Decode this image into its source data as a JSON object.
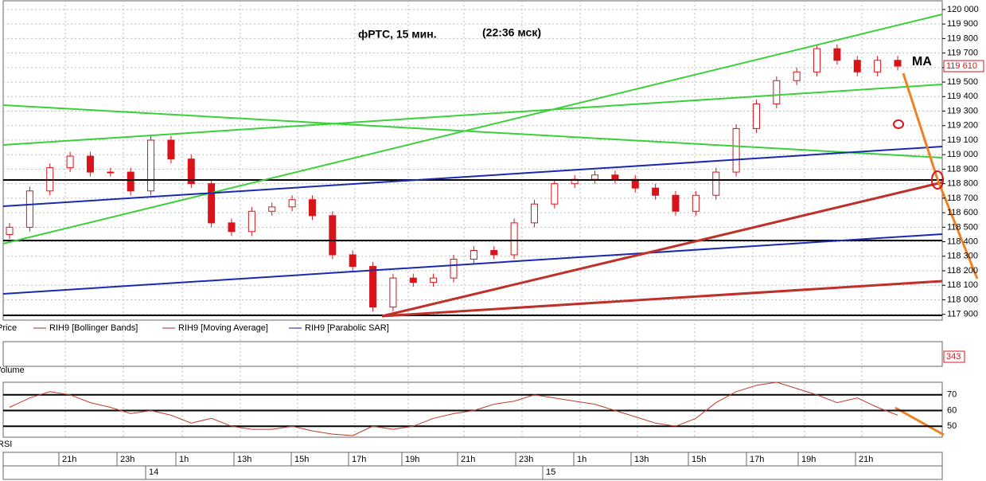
{
  "chart_data": {
    "type": "candlestick",
    "title": "фРТС,  15 мин.",
    "subtitle": "(22:36 мск)",
    "annotation": "MA",
    "price_label": "Price",
    "overlays": [
      {
        "name": "RIH9 [Bollinger Bands]",
        "color": "#a0302a"
      },
      {
        "name": "RIH9 [Moving Average]",
        "color": "#a0302a"
      },
      {
        "name": "RIH9 [Parabolic SAR]",
        "color": "#1a1aa0"
      }
    ],
    "up_color": "#ffffff",
    "down_color": "#d8141a",
    "open": [
      118450,
      118500,
      118750,
      118910,
      118990,
      118880,
      118880,
      118750,
      119100,
      118970,
      118800,
      118530,
      118470,
      118610,
      118640,
      118690,
      118580,
      118310,
      118230,
      117950,
      118150,
      118120,
      118150,
      118280,
      118340,
      118310,
      118530,
      118660,
      118800,
      118830,
      118860,
      118830,
      118770,
      118720,
      118610,
      118720,
      118880,
      119180,
      119350,
      119510,
      119570,
      119730,
      119650,
      119570,
      119650
    ],
    "high": [
      118530,
      118780,
      118940,
      119020,
      119020,
      118910,
      118910,
      119130,
      119130,
      119000,
      118830,
      118560,
      118640,
      118670,
      118720,
      118720,
      118610,
      118340,
      118260,
      118180,
      118180,
      118180,
      118310,
      118370,
      118370,
      118560,
      118690,
      118830,
      118860,
      118890,
      118890,
      118860,
      118800,
      118750,
      118750,
      118910,
      119210,
      119380,
      119540,
      119600,
      119760,
      119760,
      119680,
      119680,
      119680
    ],
    "low": [
      118420,
      118470,
      118720,
      118880,
      118850,
      118850,
      118720,
      118720,
      118940,
      118770,
      118500,
      118440,
      118440,
      118580,
      118610,
      118550,
      118280,
      118200,
      117920,
      117920,
      118090,
      118090,
      118120,
      118250,
      118280,
      118280,
      118500,
      118630,
      118770,
      118800,
      118800,
      118740,
      118690,
      118580,
      118580,
      118690,
      118850,
      119150,
      119320,
      119480,
      119540,
      119620,
      119540,
      119540,
      119580
    ],
    "close": [
      118500,
      118750,
      118910,
      118990,
      118880,
      118880,
      118750,
      119100,
      118970,
      118800,
      118530,
      118470,
      118610,
      118640,
      118690,
      118580,
      118310,
      118230,
      117950,
      118150,
      118120,
      118150,
      118280,
      118340,
      118310,
      118530,
      118660,
      118800,
      118830,
      118860,
      118830,
      118770,
      118720,
      118610,
      118720,
      118880,
      119180,
      119350,
      119510,
      119570,
      119730,
      119650,
      119570,
      119650,
      119610
    ],
    "ylim": [
      117860,
      120060
    ],
    "yticks": [
      {
        "value": 117900,
        "label": "117 900"
      },
      {
        "value": 118000,
        "label": "118 000"
      },
      {
        "value": 118100,
        "label": "118 100"
      },
      {
        "value": 118200,
        "label": "118 200"
      },
      {
        "value": 118300,
        "label": "118 300"
      },
      {
        "value": 118400,
        "label": "118 400"
      },
      {
        "value": 118500,
        "label": "118 500"
      },
      {
        "value": 118600,
        "label": "118 600"
      },
      {
        "value": 118700,
        "label": "118 700"
      },
      {
        "value": 118800,
        "label": "118 800"
      },
      {
        "value": 118900,
        "label": "118 900"
      },
      {
        "value": 119000,
        "label": "119 000"
      },
      {
        "value": 119100,
        "label": "119 100"
      },
      {
        "value": 119200,
        "label": "119 200"
      },
      {
        "value": 119300,
        "label": "119 300"
      },
      {
        "value": 119400,
        "label": "119 400"
      },
      {
        "value": 119500,
        "label": "119 500"
      },
      {
        "value": 119600,
        "label": "119 600"
      },
      {
        "value": 119700,
        "label": "119 700"
      },
      {
        "value": 119800,
        "label": "119 800"
      },
      {
        "value": 119900,
        "label": "119 900"
      },
      {
        "value": 120000,
        "label": "120 000"
      }
    ],
    "last_price": {
      "value": 119610,
      "label": "119 610"
    },
    "volume_label": "Volume",
    "last_volume": 343,
    "rsi": {
      "label": "RSI",
      "color": "#c0392b",
      "values": [
        62,
        68,
        72,
        70,
        65,
        62,
        58,
        60,
        57,
        52,
        55,
        50,
        48,
        48,
        50,
        47,
        45,
        44,
        50,
        48,
        50,
        55,
        58,
        60,
        64,
        66,
        70,
        68,
        66,
        64,
        60,
        56,
        52,
        50,
        55,
        65,
        72,
        76,
        78,
        74,
        70,
        65,
        68,
        62,
        57
      ],
      "ylim": [
        43,
        78
      ],
      "yticks": [
        50,
        60,
        70
      ]
    },
    "time_labels": [
      "21h",
      "23h",
      "1h",
      "13h",
      "15h",
      "17h",
      "19h",
      "21h",
      "23h",
      "1h",
      "13h",
      "15h",
      "17h",
      "19h",
      "21h"
    ],
    "date_labels": [
      "14",
      "15"
    ]
  }
}
